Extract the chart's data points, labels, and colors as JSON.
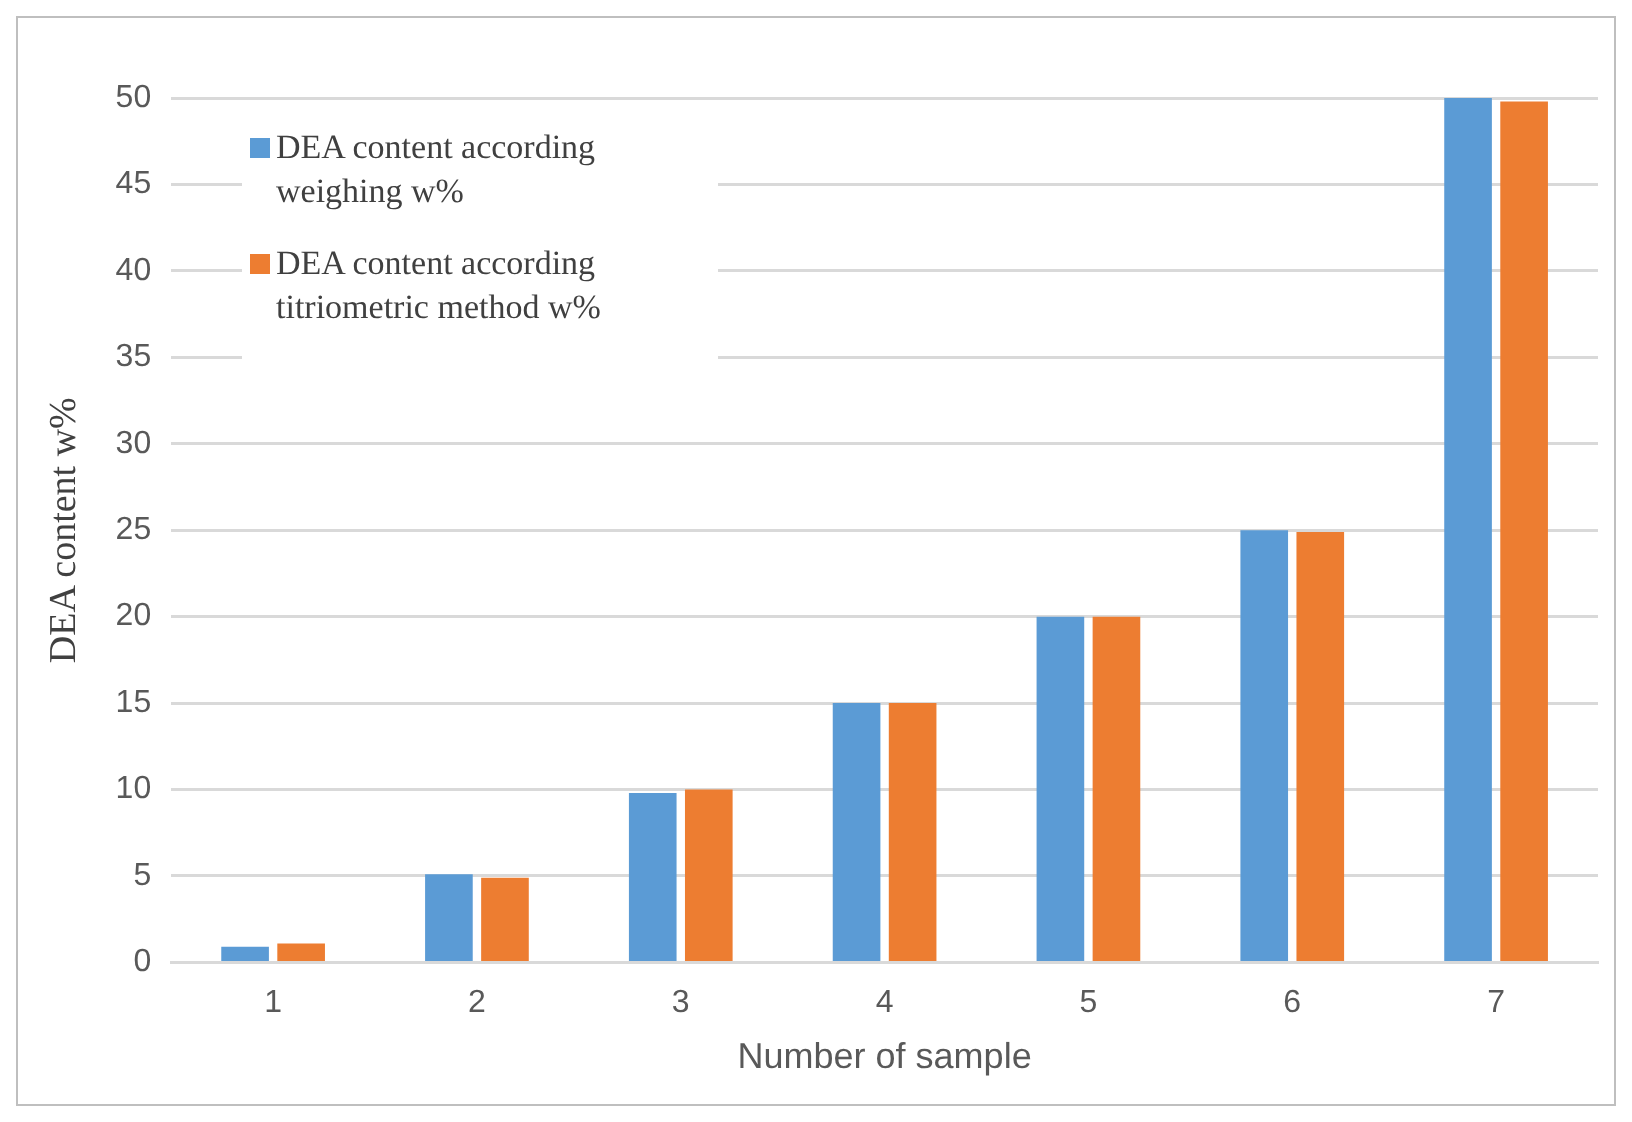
{
  "chart_data": {
    "type": "bar",
    "xlabel": "Number of sample",
    "ylabel": "DEA content w%",
    "categories": [
      "1",
      "2",
      "3",
      "4",
      "5",
      "6",
      "7"
    ],
    "series": [
      {
        "name": "DEA content according weighing w%",
        "color": "#5b9bd5",
        "values": [
          0.9,
          5.1,
          9.8,
          15,
          20,
          25,
          50
        ]
      },
      {
        "name": "DEA content according titriometric method w%",
        "color": "#ed7d31",
        "values": [
          1.1,
          4.9,
          10,
          15,
          20,
          24.9,
          49.8
        ]
      }
    ],
    "ylim": [
      0,
      50
    ],
    "yticks": [
      0,
      5,
      10,
      15,
      20,
      25,
      30,
      35,
      40,
      45,
      50
    ],
    "grid": "y",
    "legend": "top left"
  }
}
